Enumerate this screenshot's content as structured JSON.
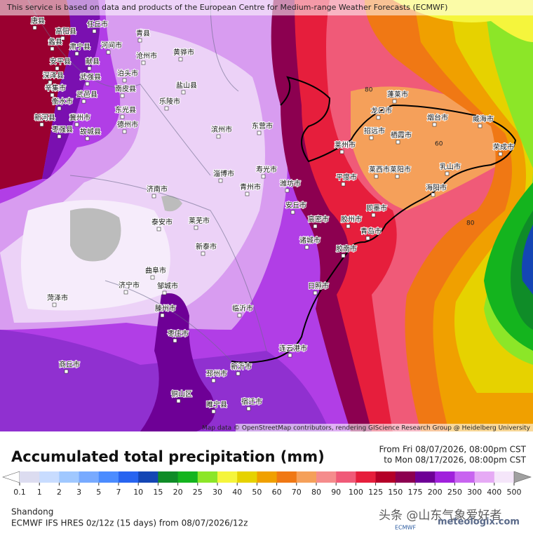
{
  "header": {
    "attribution": "This service is based on data and products of the European Centre for Medium-range Weather Forecasts (ECMWF)"
  },
  "map": {
    "credit": "Map data © OpenStreetMap contributors, rendering GIScience Research Group @ Heidelberg University",
    "labels": [
      "唐县",
      "高阳县",
      "任丘市",
      "青县",
      "河间市",
      "蠡县",
      "肃宁县",
      "安平县",
      "献县",
      "沧州市",
      "黄骅市",
      "深泽县",
      "辛集市",
      "泊头市",
      "武强县",
      "南皮县",
      "盐山县",
      "衡水市",
      "武邑县",
      "东光县",
      "乐陵市",
      "冀州市",
      "新河县",
      "枣强县",
      "故城县",
      "德州市",
      "济南市",
      "淄博市",
      "滨州市",
      "东营市",
      "寿光市",
      "潍坊市",
      "青州市",
      "莱州市",
      "招远市",
      "龙口市",
      "蓬莱市",
      "烟台市",
      "威海市",
      "荣成市",
      "栖霞市",
      "莱阳市",
      "乳山市",
      "海阳市",
      "平度市",
      "莱西市",
      "即墨市",
      "胶州市",
      "青岛市",
      "高密市",
      "安丘市",
      "诸城市",
      "胶南市",
      "日照市",
      "泰安市",
      "莱芜市",
      "新泰市",
      "临沂市",
      "枣庄市",
      "滕州市",
      "曲阜市",
      "邹城市",
      "济宁市",
      "菏泽市",
      "连云港市",
      "新沂市",
      "邳州市",
      "宿迁市",
      "睢宁县",
      "铜山区",
      "商丘市"
    ],
    "contour_labels": [
      "80",
      "60",
      "80"
    ]
  },
  "legend": {
    "title": "Accumulated total precipitation (mm)",
    "period_from": "From Fri 08/07/2026, 08:00pm CST",
    "period_to": "to Mon 08/17/2026, 08:00pm CST",
    "ticks": [
      0.1,
      1,
      2,
      3,
      5,
      7,
      10,
      15,
      20,
      25,
      30,
      40,
      50,
      60,
      70,
      80,
      90,
      100,
      125,
      150,
      175,
      200,
      250,
      300,
      400,
      500
    ],
    "colors": [
      "#dcdcf0",
      "#c8dcff",
      "#a0c8ff",
      "#78aaff",
      "#4b8cff",
      "#2864f0",
      "#1446b4",
      "#0f8c28",
      "#14b41e",
      "#8ce628",
      "#f5f53c",
      "#e6d200",
      "#f0a000",
      "#f07814",
      "#f5a05a",
      "#f58c8c",
      "#f05a78",
      "#e61e3c",
      "#b40028",
      "#8c0050",
      "#6e0096",
      "#a020dc",
      "#c864f0",
      "#e6aaf5",
      "#f5e6fa"
    ]
  },
  "footer": {
    "region": "Shandong",
    "model": "ECMWF IFS HRES 0z/12z (15 days) from 08/07/2026/12z",
    "watermark": "头条 @山东气象爱好者",
    "site": "meteologix.com",
    "logo": "ECMWF"
  }
}
